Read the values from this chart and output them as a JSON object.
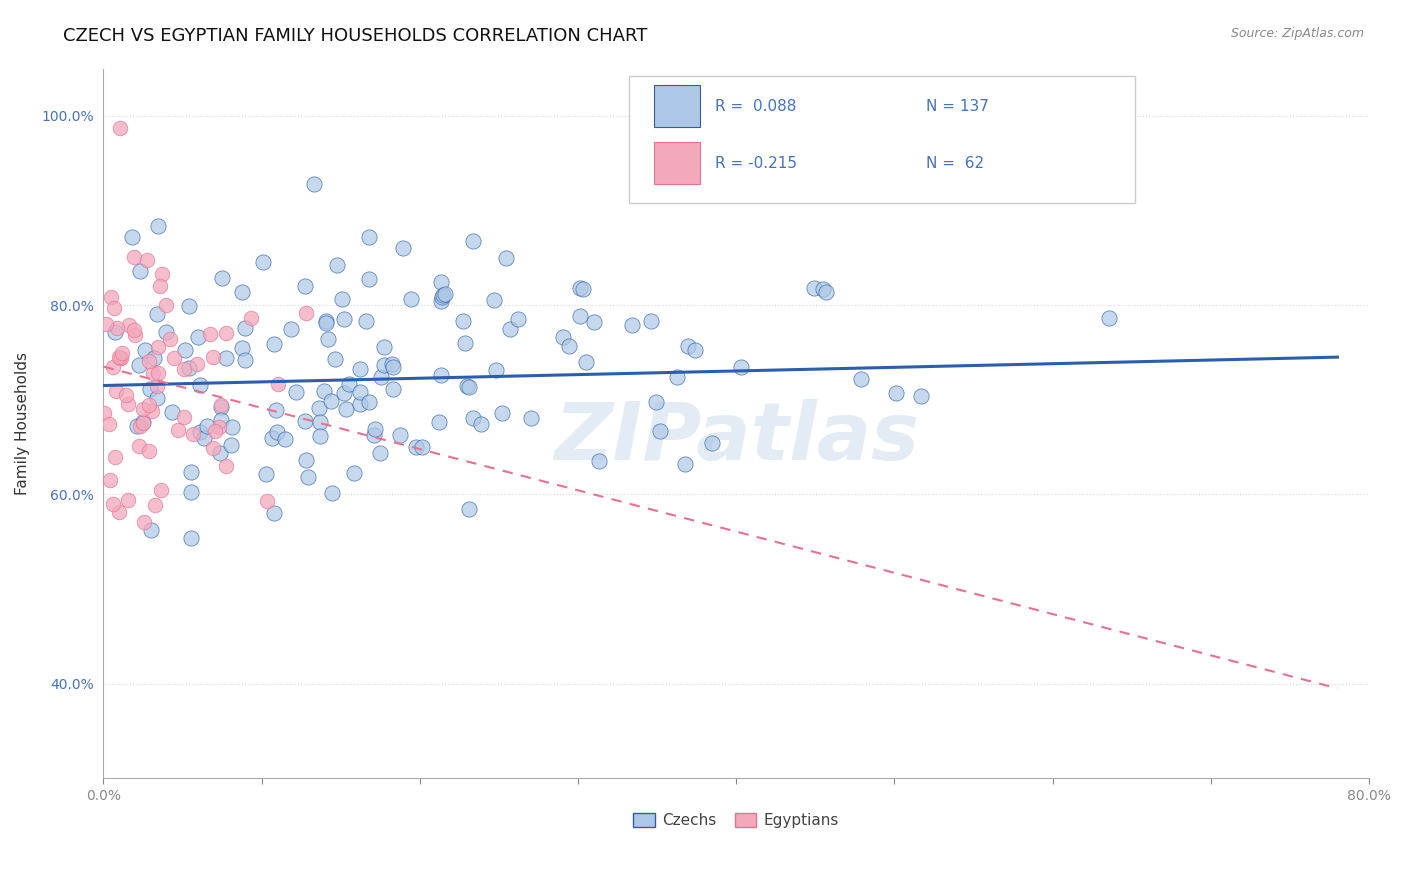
{
  "title": "CZECH VS EGYPTIAN FAMILY HOUSEHOLDS CORRELATION CHART",
  "source": "Source: ZipAtlas.com",
  "ylabel": "Family Households",
  "xlim": [
    0.0,
    0.8
  ],
  "ylim": [
    0.3,
    1.05
  ],
  "x_tick_positions": [
    0.0,
    0.1,
    0.2,
    0.3,
    0.4,
    0.5,
    0.6,
    0.7,
    0.8
  ],
  "x_tick_labels": [
    "0.0%",
    "",
    "",
    "",
    "",
    "",
    "",
    "",
    "80.0%"
  ],
  "y_tick_positions": [
    0.4,
    0.6,
    0.8,
    1.0
  ],
  "y_tick_labels": [
    "40.0%",
    "60.0%",
    "80.0%",
    "100.0%"
  ],
  "czech_color": "#adc8e6",
  "egyptian_color": "#f4a8bc",
  "czech_line_color": "#2b5fad",
  "egyptian_line_color": "#e87090",
  "R_czech": 0.088,
  "N_czech": 137,
  "R_egyptian": -0.215,
  "N_egyptian": 62,
  "legend_color": "#4472c4",
  "background_color": "#ffffff",
  "grid_color": "#d8d8d8",
  "watermark": "ZIPatlas",
  "title_fontsize": 13,
  "axis_label_fontsize": 11,
  "tick_fontsize": 10,
  "czech_line_start_x": 0.0,
  "czech_line_end_x": 0.78,
  "czech_line_start_y": 0.715,
  "czech_line_end_y": 0.745,
  "egypt_line_start_x": 0.0,
  "egypt_line_end_x": 0.78,
  "egypt_line_start_y": 0.735,
  "egypt_line_end_y": 0.395
}
